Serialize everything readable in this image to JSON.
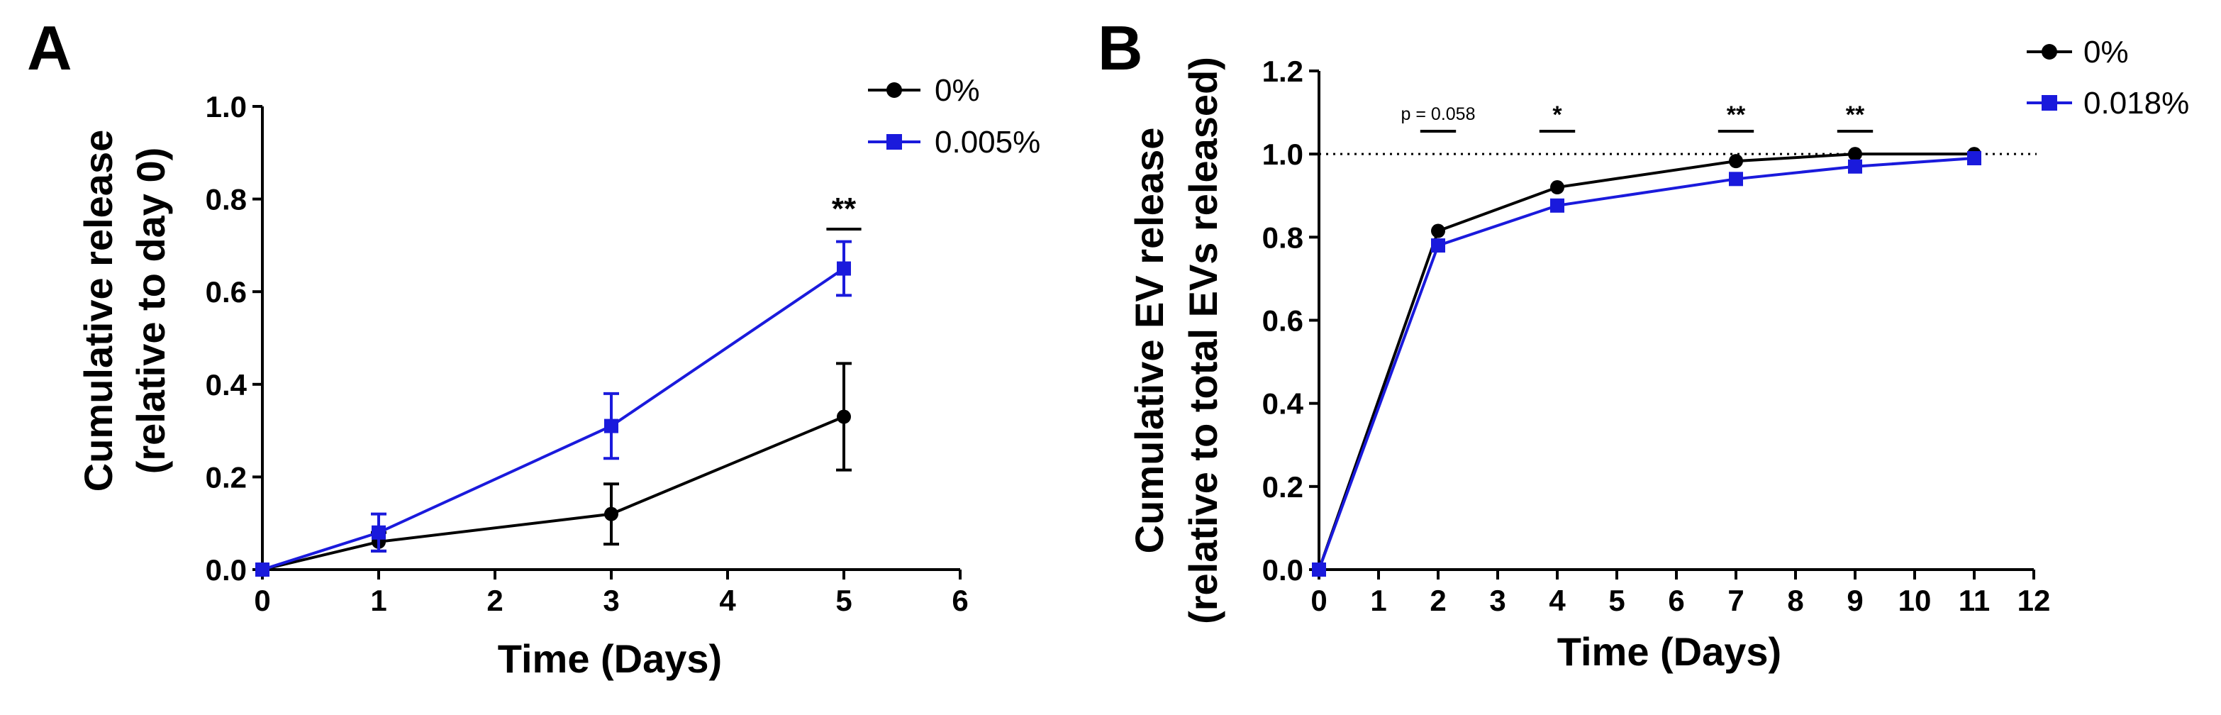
{
  "chart_data": [
    {
      "panel": "A",
      "type": "line",
      "title": "",
      "xlabel": "Time (Days)",
      "ylabel": "Cumulative release",
      "ylabel2": "(relative to day 0)",
      "xlim": [
        0,
        6
      ],
      "ylim": [
        0,
        1.0
      ],
      "x_ticks": [
        0,
        1,
        2,
        3,
        4,
        5,
        6
      ],
      "y_ticks": [
        0.0,
        0.2,
        0.4,
        0.6,
        0.8,
        1.0
      ],
      "tick_decimals": 1,
      "grid": false,
      "legend_position": "top-right",
      "series": [
        {
          "name": "0%",
          "color": "#000000",
          "marker": "circle",
          "x": [
            0,
            1,
            3,
            5
          ],
          "y": [
            0.0,
            0.06,
            0.12,
            0.33
          ],
          "err": [
            0.0,
            0.02,
            0.065,
            0.115
          ]
        },
        {
          "name": "0.005%",
          "color": "#1a1adc",
          "marker": "square",
          "x": [
            0,
            1,
            3,
            5
          ],
          "y": [
            0.0,
            0.08,
            0.31,
            0.65
          ],
          "err": [
            0.0,
            0.04,
            0.07,
            0.058
          ]
        }
      ],
      "annotations": [
        {
          "text": "**",
          "x1": 4.85,
          "x2": 5.15,
          "y": 0.735,
          "style": "large"
        }
      ],
      "reference_line": null
    },
    {
      "panel": "B",
      "type": "line",
      "title": "",
      "xlabel": "Time (Days)",
      "ylabel": "Cumulative EV release",
      "ylabel2": "(relative to total EVs released)",
      "xlim": [
        0,
        12
      ],
      "ylim": [
        0,
        1.2
      ],
      "x_ticks": [
        0,
        1,
        2,
        3,
        4,
        5,
        6,
        7,
        8,
        9,
        10,
        11,
        12
      ],
      "y_ticks": [
        0.0,
        0.2,
        0.4,
        0.6,
        0.8,
        1.0,
        1.2
      ],
      "tick_decimals": 1,
      "grid": false,
      "legend_position": "top-right",
      "series": [
        {
          "name": "0%",
          "color": "#000000",
          "marker": "circle",
          "x": [
            0,
            2,
            4,
            7,
            9,
            11
          ],
          "y": [
            0.0,
            0.815,
            0.92,
            0.983,
            1.0,
            1.0
          ],
          "err": null
        },
        {
          "name": "0.018%",
          "color": "#1a1adc",
          "marker": "square",
          "x": [
            0,
            2,
            4,
            7,
            9,
            11
          ],
          "y": [
            0.0,
            0.78,
            0.876,
            0.94,
            0.97,
            0.99
          ],
          "err": null
        }
      ],
      "annotations": [
        {
          "text": "p = 0.058",
          "x1": 1.7,
          "x2": 2.3,
          "y": 1.055,
          "style": "small"
        },
        {
          "text": "*",
          "x1": 3.7,
          "x2": 4.3,
          "y": 1.055,
          "style": "medium"
        },
        {
          "text": "**",
          "x1": 6.7,
          "x2": 7.3,
          "y": 1.055,
          "style": "medium"
        },
        {
          "text": "**",
          "x1": 8.7,
          "x2": 9.3,
          "y": 1.055,
          "style": "medium"
        }
      ],
      "reference_line": {
        "y": 1.0,
        "style": "dotted"
      }
    }
  ]
}
